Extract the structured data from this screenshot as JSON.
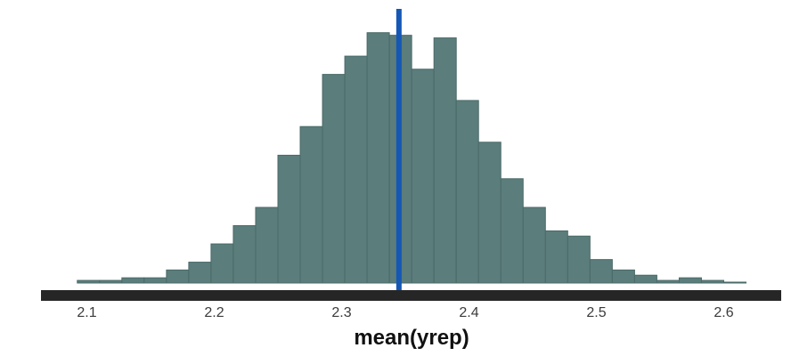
{
  "chart_data": {
    "type": "bar",
    "subtype": "histogram",
    "title": "",
    "xlabel": "mean(yrep)",
    "ylabel": "",
    "xlim": [
      2.075,
      2.63
    ],
    "ylim": [
      0,
      100
    ],
    "x_ticks": [
      2.1,
      2.2,
      2.3,
      2.4,
      2.5,
      2.6
    ],
    "x_tick_labels": [
      "2.1",
      "2.2",
      "2.3",
      "2.4",
      "2.5",
      "2.6"
    ],
    "bin_width": 0.0175,
    "bin_starts": [
      2.0925,
      2.11,
      2.1275,
      2.145,
      2.1625,
      2.18,
      2.1975,
      2.215,
      2.2325,
      2.25,
      2.2675,
      2.285,
      2.3025,
      2.32,
      2.3375,
      2.355,
      2.3725,
      2.39,
      2.4075,
      2.425,
      2.4425,
      2.46,
      2.4775,
      2.495,
      2.5125,
      2.53,
      2.5475,
      2.565,
      2.5825,
      2.6
    ],
    "counts": [
      1,
      1,
      2,
      2,
      5,
      8,
      15,
      22,
      29,
      49,
      60,
      80,
      87,
      96,
      95,
      82,
      94,
      70,
      54,
      40,
      29,
      20,
      18,
      9,
      5,
      3,
      1,
      2,
      1,
      0
    ],
    "observed_stat": 2.345,
    "grid": false,
    "legend": "none",
    "colors": {
      "bar_fill": "#5b7d7b",
      "bar_stroke": "#4a6a68",
      "observed_line": "#1557b5",
      "axis_line": "#262626"
    }
  }
}
